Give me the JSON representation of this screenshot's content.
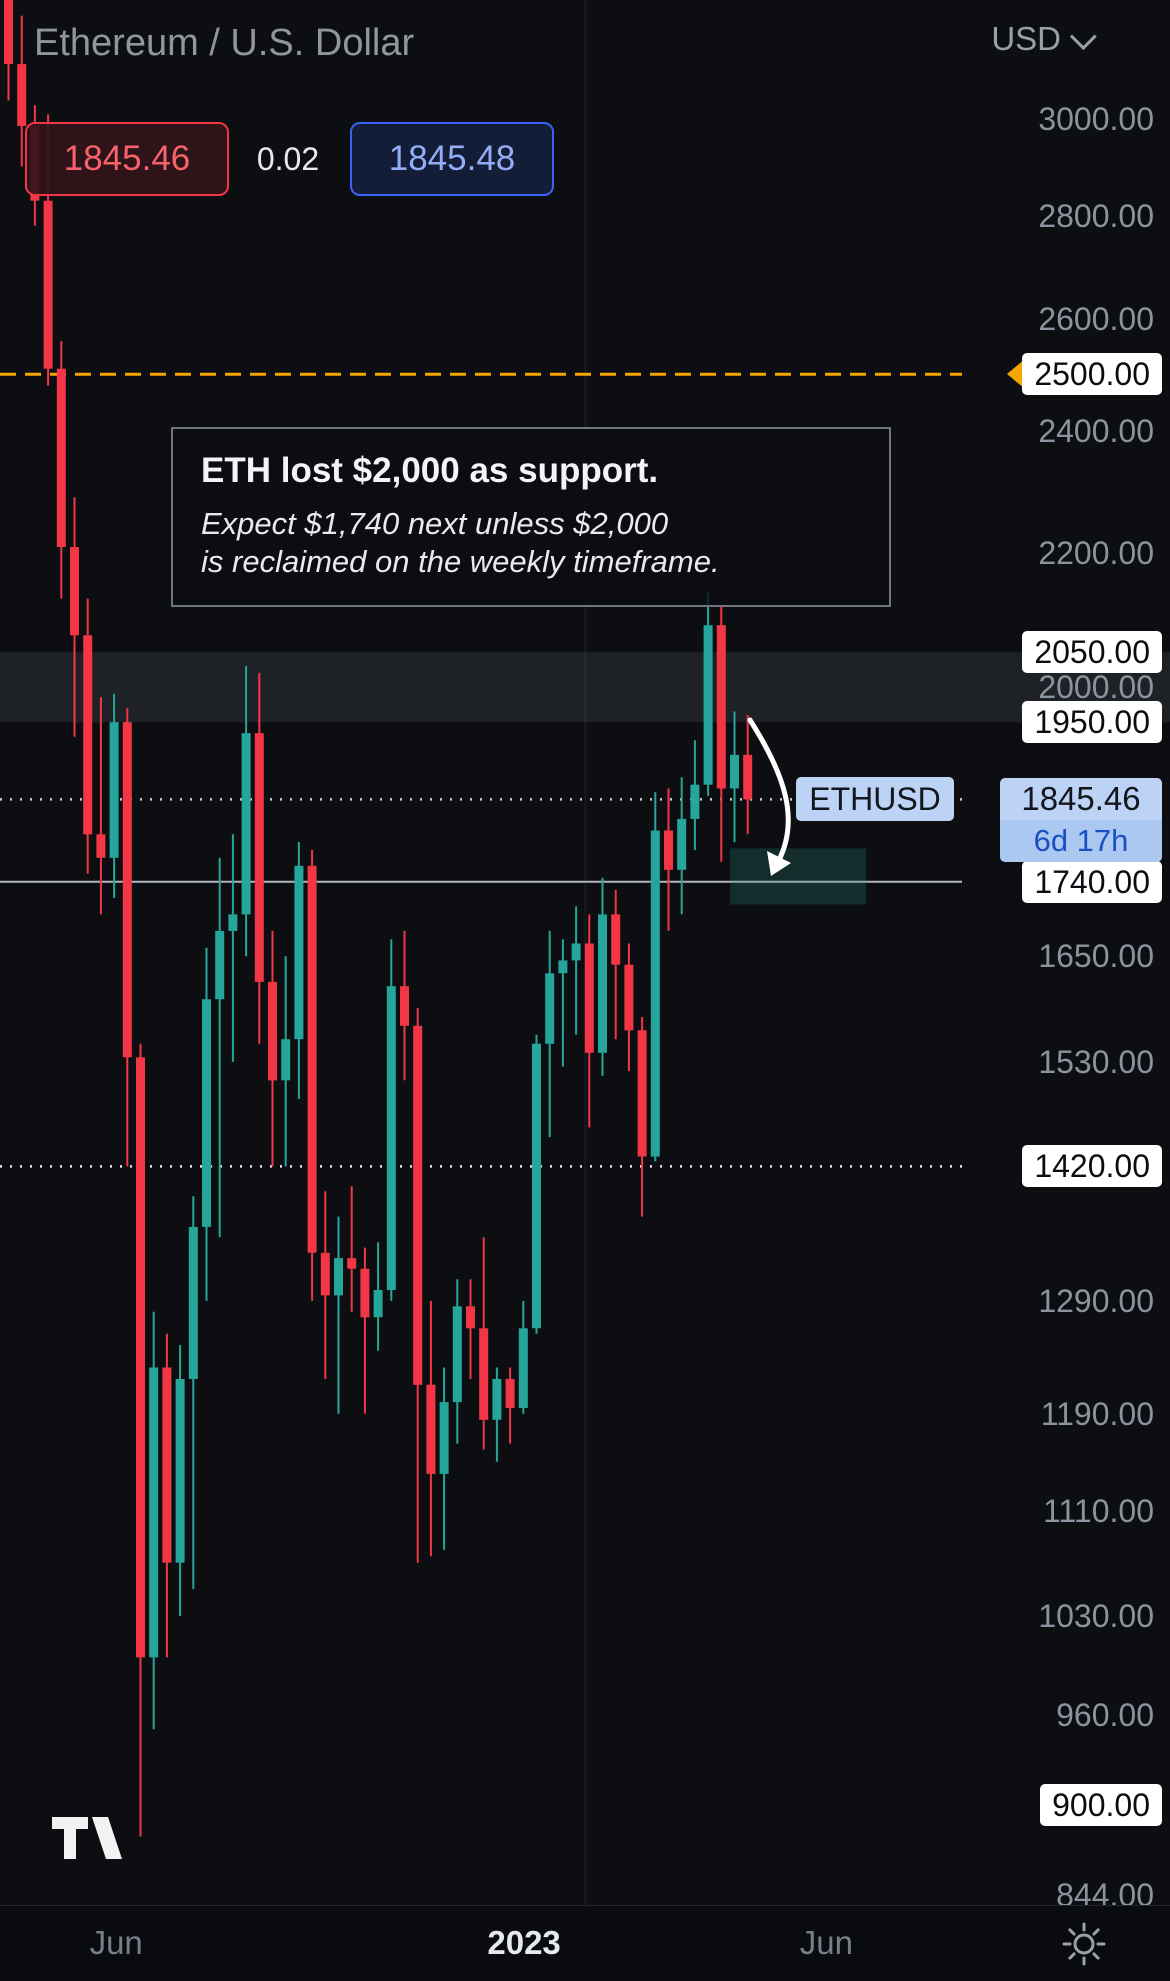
{
  "header": {
    "title": "Ethereum / U.S. Dollar",
    "bid": "1845.46",
    "spread": "0.02",
    "ask": "1845.48",
    "currency": "USD"
  },
  "annotation": {
    "title": "ETH lost $2,000 as support.",
    "line1": "Expect $1,740 next unless $2,000",
    "line2": "is reclaimed on the weekly timeframe."
  },
  "chart_data": {
    "type": "candlestick",
    "symbol": "ETHUSD",
    "title": "Ethereum / U.S. Dollar",
    "scale": "logarithmic",
    "up_color": "#26a69a",
    "down_color": "#f23645",
    "zone": {
      "from": 1950,
      "to": 2050,
      "color": "rgba(157,168,189,0.13)"
    },
    "current": {
      "price": 1845.46,
      "label": "1845.46",
      "countdown": "6d 17h",
      "symbol": "ETHUSD",
      "line_color": "#c9cfda"
    },
    "levels": [
      {
        "price": 2500,
        "label": "2500.00",
        "line": "dashed",
        "color": "#f7a600",
        "marker": "orange-left-arrow"
      },
      {
        "price": 2050,
        "label": "2050.00",
        "line": "none",
        "color": "#ffffff"
      },
      {
        "price": 1950,
        "label": "1950.00",
        "line": "none",
        "color": "#ffffff"
      },
      {
        "price": 1740,
        "label": "1740.00",
        "line": "solid",
        "color": "#b2b5be"
      },
      {
        "price": 1420,
        "label": "1420.00",
        "line": "dotted",
        "color": "#e8eaed"
      },
      {
        "price": 900,
        "label": "900.00",
        "line": "none",
        "color": "#ffffff"
      }
    ],
    "y_ticks": [
      {
        "value": 3000,
        "label": "3000.00"
      },
      {
        "value": 2800,
        "label": "2800.00"
      },
      {
        "value": 2600,
        "label": "2600.00"
      },
      {
        "value": 2400,
        "label": "2400.00"
      },
      {
        "value": 2200,
        "label": "2200.00"
      },
      {
        "value": 2000,
        "label": "2000.00"
      },
      {
        "value": 1650,
        "label": "1650.00"
      },
      {
        "value": 1530,
        "label": "1530.00"
      },
      {
        "value": 1290,
        "label": "1290.00"
      },
      {
        "value": 1190,
        "label": "1190.00"
      },
      {
        "value": 1110,
        "label": "1110.00"
      },
      {
        "value": 1030,
        "label": "1030.00"
      },
      {
        "value": 960,
        "label": "960.00"
      },
      {
        "value": 844,
        "label": "844.00"
      }
    ],
    "x_ticks": [
      {
        "label": "Jun",
        "index": 8.5,
        "major": false
      },
      {
        "label": "2023",
        "index": 39.4,
        "major": true
      },
      {
        "label": "Jun",
        "index": 62.3,
        "major": false
      }
    ],
    "target_box": {
      "from_index": 55,
      "to_index": 65.3,
      "price_from": 1712,
      "price_to": 1782,
      "color": "rgba(44,155,135,0.22)"
    },
    "candles": [
      [
        3455,
        3520,
        3040,
        3120
      ],
      [
        3120,
        3230,
        2900,
        2985
      ],
      [
        2985,
        3030,
        2780,
        2830
      ],
      [
        2830,
        3010,
        2480,
        2510
      ],
      [
        2510,
        2560,
        2130,
        2210
      ],
      [
        2210,
        2290,
        1930,
        2075
      ],
      [
        2075,
        2130,
        1750,
        1800
      ],
      [
        1800,
        1985,
        1700,
        1770
      ],
      [
        1770,
        1990,
        1720,
        1950
      ],
      [
        1950,
        1970,
        1420,
        1535
      ],
      [
        1535,
        1550,
        880,
        1000
      ],
      [
        1000,
        1280,
        950,
        1230
      ],
      [
        1230,
        1260,
        1000,
        1070
      ],
      [
        1070,
        1250,
        1030,
        1220
      ],
      [
        1220,
        1390,
        1050,
        1360
      ],
      [
        1360,
        1660,
        1290,
        1600
      ],
      [
        1600,
        1770,
        1350,
        1680
      ],
      [
        1680,
        1800,
        1530,
        1700
      ],
      [
        1700,
        2030,
        1650,
        1935
      ],
      [
        1935,
        2020,
        1550,
        1620
      ],
      [
        1620,
        1680,
        1420,
        1510
      ],
      [
        1510,
        1650,
        1420,
        1555
      ],
      [
        1555,
        1790,
        1490,
        1760
      ],
      [
        1760,
        1780,
        1290,
        1335
      ],
      [
        1335,
        1395,
        1220,
        1295
      ],
      [
        1295,
        1370,
        1190,
        1330
      ],
      [
        1330,
        1400,
        1280,
        1320
      ],
      [
        1320,
        1340,
        1190,
        1275
      ],
      [
        1275,
        1345,
        1245,
        1300
      ],
      [
        1300,
        1670,
        1290,
        1615
      ],
      [
        1615,
        1680,
        1510,
        1570
      ],
      [
        1570,
        1590,
        1070,
        1215
      ],
      [
        1215,
        1290,
        1075,
        1140
      ],
      [
        1140,
        1230,
        1080,
        1200
      ],
      [
        1200,
        1310,
        1165,
        1285
      ],
      [
        1285,
        1310,
        1220,
        1265
      ],
      [
        1265,
        1350,
        1160,
        1185
      ],
      [
        1185,
        1230,
        1150,
        1220
      ],
      [
        1220,
        1230,
        1165,
        1195
      ],
      [
        1195,
        1290,
        1190,
        1265
      ],
      [
        1265,
        1560,
        1260,
        1550
      ],
      [
        1550,
        1680,
        1450,
        1630
      ],
      [
        1630,
        1670,
        1525,
        1645
      ],
      [
        1645,
        1710,
        1560,
        1665
      ],
      [
        1665,
        1700,
        1460,
        1540
      ],
      [
        1540,
        1745,
        1515,
        1700
      ],
      [
        1700,
        1730,
        1555,
        1640
      ],
      [
        1640,
        1665,
        1520,
        1565
      ],
      [
        1565,
        1580,
        1370,
        1430
      ],
      [
        1430,
        1855,
        1425,
        1805
      ],
      [
        1805,
        1860,
        1680,
        1755
      ],
      [
        1755,
        1875,
        1700,
        1820
      ],
      [
        1820,
        1925,
        1780,
        1865
      ],
      [
        1865,
        2140,
        1850,
        2090
      ],
      [
        2090,
        2120,
        1765,
        1860
      ],
      [
        1860,
        1965,
        1790,
        1905
      ],
      [
        1905,
        1960,
        1800,
        1845.46
      ]
    ]
  }
}
